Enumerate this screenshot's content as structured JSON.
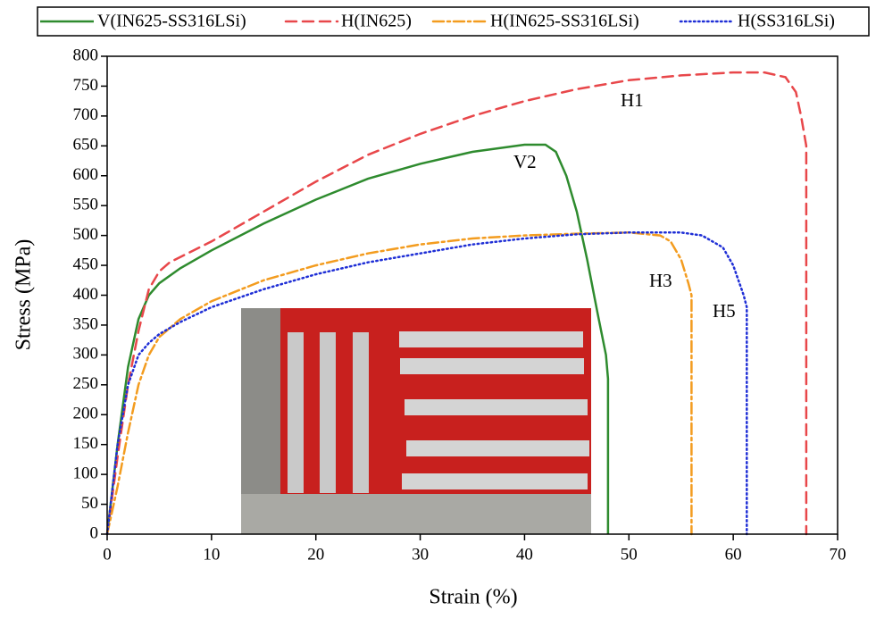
{
  "chart_data": {
    "type": "line",
    "x_label": "Strain (%)",
    "y_label": "Stress (MPa)",
    "xlim": [
      0,
      70
    ],
    "xticks": [
      0,
      10,
      20,
      30,
      40,
      50,
      60,
      70
    ],
    "ylim": [
      0,
      800
    ],
    "yticks": [
      0,
      50,
      100,
      150,
      200,
      250,
      300,
      350,
      400,
      450,
      500,
      550,
      600,
      650,
      700,
      750,
      800
    ],
    "series": [
      {
        "name": "V(IN625-SS316LSi)",
        "color": "#2e8b2e",
        "dash": "none",
        "x": [
          0,
          1,
          2,
          3,
          4,
          5,
          7,
          10,
          15,
          20,
          25,
          30,
          35,
          40,
          42,
          43,
          44,
          45,
          46,
          47,
          47.8,
          48,
          48
        ],
        "values": [
          0,
          150,
          280,
          360,
          400,
          420,
          445,
          475,
          520,
          560,
          595,
          620,
          640,
          652,
          652,
          640,
          600,
          540,
          460,
          370,
          300,
          260,
          0
        ]
      },
      {
        "name": "H(IN625)",
        "color": "#e8474a",
        "dash": "12 7",
        "x": [
          0,
          1,
          2,
          3,
          4,
          5,
          6,
          10,
          15,
          20,
          25,
          30,
          35,
          40,
          45,
          50,
          55,
          60,
          63,
          65,
          66,
          66.5,
          67,
          67
        ],
        "values": [
          0,
          130,
          250,
          340,
          410,
          440,
          455,
          490,
          540,
          590,
          635,
          670,
          700,
          725,
          745,
          760,
          768,
          773,
          773,
          765,
          740,
          700,
          650,
          0
        ]
      },
      {
        "name": "H(IN625-SS316LSi)",
        "color": "#f39c1f",
        "dash": "12 4 3 4",
        "x": [
          0,
          1,
          2,
          3,
          4,
          5,
          7,
          10,
          15,
          20,
          25,
          30,
          35,
          40,
          45,
          50,
          53,
          54,
          55,
          55.7,
          56,
          56
        ],
        "values": [
          0,
          80,
          170,
          250,
          300,
          330,
          360,
          390,
          425,
          450,
          470,
          485,
          495,
          500,
          503,
          505,
          500,
          490,
          460,
          420,
          400,
          0
        ]
      },
      {
        "name": "H(SS316LSi)",
        "color": "#1f2fd6",
        "dash": "1.5 3.5",
        "x": [
          0,
          1,
          2,
          3,
          4,
          5,
          7,
          10,
          15,
          20,
          25,
          30,
          35,
          40,
          45,
          50,
          55,
          57,
          59,
          60,
          61,
          61.3,
          61.3
        ],
        "values": [
          0,
          150,
          250,
          300,
          320,
          335,
          355,
          380,
          410,
          435,
          455,
          470,
          485,
          495,
          502,
          505,
          505,
          500,
          480,
          450,
          400,
          380,
          0
        ]
      }
    ],
    "annotations": [
      {
        "text": "H1"
      },
      {
        "text": "V2"
      },
      {
        "text": "H3"
      },
      {
        "text": "H5"
      }
    ]
  }
}
